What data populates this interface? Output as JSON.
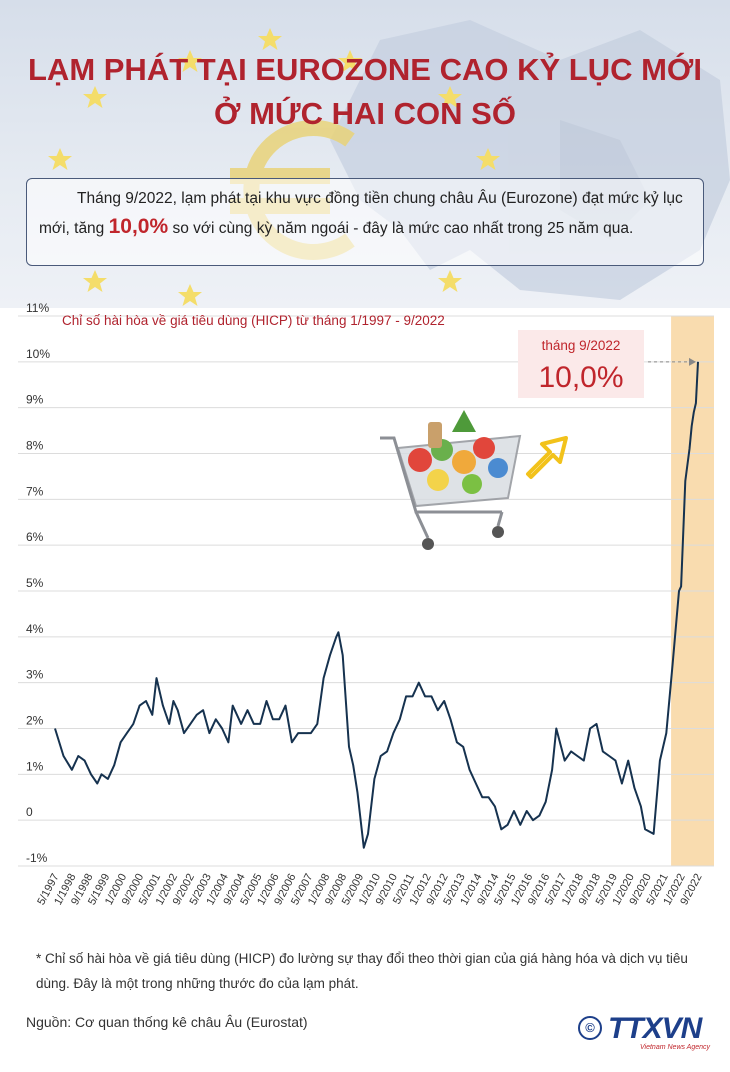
{
  "header": {
    "title_line1": "LẠM PHÁT TẠI EUROZONE CAO KỶ LỤC MỚI",
    "title_line2": "Ở MỨC HAI CON SỐ",
    "intro_before": "Tháng 9/2022, lạm phát tại khu vực đồng tiền chung châu Âu (Eurozone) đạt mức kỷ lục mới, tăng ",
    "intro_highlight": "10,0%",
    "intro_after": " so với cùng kỳ năm ngoái - đây là mức cao nhất trong 25 năm qua."
  },
  "colors": {
    "title": "#b0232e",
    "line": "#16324f",
    "highlight_band": "#f9dcaf",
    "grid": "#dcdcdc",
    "callout_bg": "#fbe9e9",
    "accent_red": "#c0262c"
  },
  "icons": [
    "eu-star-icon",
    "euro-sign-icon",
    "shopping-cart-icon",
    "arrow-up-right-icon",
    "copyright-icon"
  ],
  "chart_data": {
    "type": "line",
    "title": "Chỉ số hài hòa về giá tiêu dùng (HICP) từ tháng 1/1997 - 9/2022",
    "xlabel": "",
    "ylabel": "",
    "ylim": [
      -1,
      11
    ],
    "ytick_labels": [
      "11%",
      "10%",
      "9%",
      "8%",
      "7%",
      "6%",
      "5%",
      "4%",
      "3%",
      "2%",
      "1%",
      "0",
      "-1%"
    ],
    "ytick_values": [
      11,
      10,
      9,
      8,
      7,
      6,
      5,
      4,
      3,
      2,
      1,
      0,
      -1
    ],
    "xtick_labels": [
      "5/1997",
      "1/1998",
      "9/1998",
      "5/1999",
      "1/2000",
      "9/2000",
      "5/2001",
      "1/2002",
      "9/2002",
      "5/2003",
      "1/2004",
      "9/2004",
      "5/2005",
      "1/2006",
      "9/2006",
      "5/2007",
      "1/2008",
      "9/2008",
      "5/2009",
      "1/2010",
      "9/2010",
      "5/2011",
      "1/2012",
      "9/2012",
      "5/2013",
      "1/2014",
      "9/2014",
      "5/2015",
      "1/2016",
      "9/2016",
      "5/2017",
      "1/2018",
      "9/2018",
      "5/2019",
      "1/2020",
      "9/2020",
      "5/2021",
      "1/2022",
      "9/2022"
    ],
    "grid": true,
    "highlight_period": [
      "1/2022",
      "9/2022"
    ],
    "annotation": {
      "label": "tháng 9/2022",
      "value_text": "10,0%",
      "x": "2022-09",
      "y": 10.0
    },
    "series": [
      {
        "x": [
          "1997-05",
          "1997-09",
          "1998-01",
          "1998-04",
          "1998-07",
          "1998-10",
          "1999-01",
          "1999-03",
          "1999-06",
          "1999-09",
          "1999-12",
          "2000-03",
          "2000-06",
          "2000-09",
          "2000-12",
          "2001-03",
          "2001-05",
          "2001-08",
          "2001-11",
          "2002-01",
          "2002-03",
          "2002-06",
          "2002-09",
          "2002-12",
          "2003-03",
          "2003-06",
          "2003-09",
          "2003-12",
          "2004-03",
          "2004-05",
          "2004-09",
          "2004-12",
          "2005-03",
          "2005-06",
          "2005-09",
          "2005-12",
          "2006-03",
          "2006-06",
          "2006-09",
          "2006-12",
          "2007-03",
          "2007-06",
          "2007-09",
          "2007-12",
          "2008-03",
          "2008-06",
          "2008-07",
          "2008-09",
          "2008-12",
          "2009-02",
          "2009-04",
          "2009-07",
          "2009-09",
          "2009-12",
          "2010-03",
          "2010-06",
          "2010-09",
          "2010-12",
          "2011-03",
          "2011-06",
          "2011-09",
          "2011-12",
          "2012-03",
          "2012-06",
          "2012-09",
          "2012-12",
          "2013-03",
          "2013-06",
          "2013-09",
          "2013-12",
          "2014-03",
          "2014-06",
          "2014-09",
          "2014-12",
          "2015-03",
          "2015-06",
          "2015-09",
          "2015-12",
          "2016-03",
          "2016-06",
          "2016-09",
          "2016-12",
          "2017-02",
          "2017-06",
          "2017-09",
          "2017-12",
          "2018-03",
          "2018-06",
          "2018-09",
          "2018-12",
          "2019-03",
          "2019-06",
          "2019-09",
          "2019-12",
          "2020-03",
          "2020-06",
          "2020-08",
          "2020-12",
          "2021-03",
          "2021-06",
          "2021-09",
          "2021-12",
          "2022-01",
          "2022-03",
          "2022-05",
          "2022-06",
          "2022-07",
          "2022-08",
          "2022-09"
        ],
        "y": [
          2.0,
          1.4,
          1.1,
          1.4,
          1.3,
          1.0,
          0.8,
          1.0,
          0.9,
          1.2,
          1.7,
          1.9,
          2.1,
          2.5,
          2.6,
          2.3,
          3.1,
          2.5,
          2.1,
          2.6,
          2.4,
          1.9,
          2.1,
          2.3,
          2.4,
          1.9,
          2.2,
          2.0,
          1.7,
          2.5,
          2.1,
          2.4,
          2.1,
          2.1,
          2.6,
          2.2,
          2.2,
          2.5,
          1.7,
          1.9,
          1.9,
          1.9,
          2.1,
          3.1,
          3.6,
          4.0,
          4.1,
          3.6,
          1.6,
          1.2,
          0.6,
          -0.6,
          -0.3,
          0.9,
          1.4,
          1.5,
          1.9,
          2.2,
          2.7,
          2.7,
          3.0,
          2.7,
          2.7,
          2.4,
          2.6,
          2.2,
          1.7,
          1.6,
          1.1,
          0.8,
          0.5,
          0.5,
          0.3,
          -0.2,
          -0.1,
          0.2,
          -0.1,
          0.2,
          0.0,
          0.1,
          0.4,
          1.1,
          2.0,
          1.3,
          1.5,
          1.4,
          1.3,
          2.0,
          2.1,
          1.5,
          1.4,
          1.3,
          0.8,
          1.3,
          0.7,
          0.3,
          -0.2,
          -0.3,
          1.3,
          1.9,
          3.4,
          5.0,
          5.1,
          7.4,
          8.1,
          8.6,
          8.9,
          9.1,
          10.0
        ]
      }
    ]
  },
  "footnote": {
    "text": "* Chỉ số hài hòa về giá tiêu dùng (HICP) đo lường sự thay đổi theo thời gian của giá hàng hóa và dịch vụ tiêu dùng. Đây là một trong những thước đo của lạm phát."
  },
  "source": {
    "text": "Nguồn: Cơ quan thống kê châu Âu (Eurostat)"
  },
  "logo": {
    "symbol": "©",
    "name": "TTXVN",
    "tagline": "Vietnam News Agency"
  }
}
